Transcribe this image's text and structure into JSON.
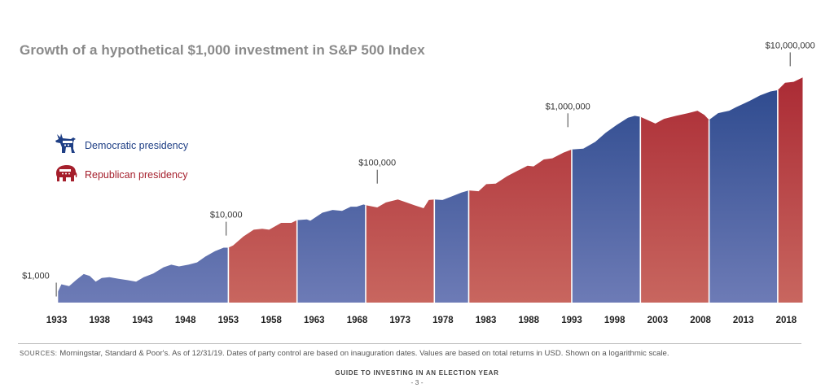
{
  "title": "Growth of a hypothetical $1,000 investment in S&P 500 Index",
  "legend": [
    {
      "label": "Democratic presidency",
      "party": "D",
      "icon": "donkey-icon"
    },
    {
      "label": "Republican presidency",
      "party": "R",
      "icon": "elephant-icon"
    }
  ],
  "colors": {
    "D_top": "#1f3f85",
    "D_bottom": "#6d7bb6",
    "R_top": "#a51f2c",
    "R_bottom": "#c8665f",
    "D_text": "#1f3f85",
    "R_text": "#a51f2c"
  },
  "chart_data": {
    "type": "area",
    "title": "Growth of a hypothetical $1,000 investment in S&P 500 Index",
    "y_scale": "log",
    "ylim": [
      640,
      20000000
    ],
    "xlim": [
      1932.9,
      2020.0
    ],
    "x_ticks": [
      "1933",
      "1938",
      "1943",
      "1948",
      "1953",
      "1958",
      "1963",
      "1968",
      "1973",
      "1978",
      "1983",
      "1988",
      "1993",
      "1998",
      "2003",
      "2008",
      "2013",
      "2018"
    ],
    "annotations": [
      {
        "label": "$1,000",
        "x": 1933.0,
        "y": 1000
      },
      {
        "label": "$10,000",
        "x": 1952.8,
        "y": 12000
      },
      {
        "label": "$100,000",
        "x": 1970.4,
        "y": 100000
      },
      {
        "label": "$1,000,000",
        "x": 1992.6,
        "y": 1000000
      },
      {
        "label": "$10,000,000",
        "x": 2018.5,
        "y": 12000000
      }
    ],
    "party_periods": [
      {
        "start": 1933.2,
        "end": 1953.05,
        "party": "D"
      },
      {
        "start": 1953.05,
        "end": 1961.05,
        "party": "R"
      },
      {
        "start": 1961.05,
        "end": 1969.05,
        "party": "D"
      },
      {
        "start": 1969.05,
        "end": 1977.05,
        "party": "R"
      },
      {
        "start": 1977.05,
        "end": 1981.05,
        "party": "D"
      },
      {
        "start": 1981.05,
        "end": 1993.05,
        "party": "R"
      },
      {
        "start": 1993.05,
        "end": 2001.05,
        "party": "D"
      },
      {
        "start": 2001.05,
        "end": 2009.05,
        "party": "R"
      },
      {
        "start": 2009.05,
        "end": 2017.05,
        "party": "D"
      },
      {
        "start": 2017.05,
        "end": 2019.95,
        "party": "R"
      }
    ],
    "series": [
      {
        "x": 1933.2,
        "y": 1000
      },
      {
        "x": 1933.6,
        "y": 1350
      },
      {
        "x": 1934.5,
        "y": 1250
      },
      {
        "x": 1935.3,
        "y": 1600
      },
      {
        "x": 1936.2,
        "y": 2050
      },
      {
        "x": 1936.9,
        "y": 1900
      },
      {
        "x": 1937.6,
        "y": 1500
      },
      {
        "x": 1938.3,
        "y": 1750
      },
      {
        "x": 1939.2,
        "y": 1800
      },
      {
        "x": 1940.2,
        "y": 1700
      },
      {
        "x": 1941.3,
        "y": 1600
      },
      {
        "x": 1942.3,
        "y": 1500
      },
      {
        "x": 1943.2,
        "y": 1800
      },
      {
        "x": 1944.3,
        "y": 2100
      },
      {
        "x": 1945.5,
        "y": 2700
      },
      {
        "x": 1946.4,
        "y": 3000
      },
      {
        "x": 1947.3,
        "y": 2800
      },
      {
        "x": 1948.4,
        "y": 3000
      },
      {
        "x": 1949.4,
        "y": 3300
      },
      {
        "x": 1950.4,
        "y": 4200
      },
      {
        "x": 1951.5,
        "y": 5200
      },
      {
        "x": 1952.5,
        "y": 6000
      },
      {
        "x": 1953.05,
        "y": 6000
      },
      {
        "x": 1953.6,
        "y": 6600
      },
      {
        "x": 1954.8,
        "y": 9500
      },
      {
        "x": 1956.0,
        "y": 12500
      },
      {
        "x": 1957.0,
        "y": 13000
      },
      {
        "x": 1957.8,
        "y": 12500
      },
      {
        "x": 1959.2,
        "y": 16500
      },
      {
        "x": 1960.4,
        "y": 16500
      },
      {
        "x": 1961.05,
        "y": 18500
      },
      {
        "x": 1962.2,
        "y": 19000
      },
      {
        "x": 1962.6,
        "y": 18000
      },
      {
        "x": 1964.0,
        "y": 25000
      },
      {
        "x": 1965.2,
        "y": 28000
      },
      {
        "x": 1966.3,
        "y": 27000
      },
      {
        "x": 1967.3,
        "y": 32000
      },
      {
        "x": 1968.0,
        "y": 32000
      },
      {
        "x": 1968.8,
        "y": 35000
      },
      {
        "x": 1969.05,
        "y": 34000
      },
      {
        "x": 1970.4,
        "y": 31000
      },
      {
        "x": 1971.4,
        "y": 38000
      },
      {
        "x": 1972.8,
        "y": 43000
      },
      {
        "x": 1973.8,
        "y": 38000
      },
      {
        "x": 1974.7,
        "y": 34000
      },
      {
        "x": 1975.8,
        "y": 30000
      },
      {
        "x": 1976.4,
        "y": 42000
      },
      {
        "x": 1977.05,
        "y": 43000
      },
      {
        "x": 1978.0,
        "y": 42000
      },
      {
        "x": 1979.0,
        "y": 48000
      },
      {
        "x": 1980.2,
        "y": 57000
      },
      {
        "x": 1981.05,
        "y": 62000
      },
      {
        "x": 1982.2,
        "y": 60000
      },
      {
        "x": 1983.1,
        "y": 80000
      },
      {
        "x": 1984.2,
        "y": 82000
      },
      {
        "x": 1985.5,
        "y": 110000
      },
      {
        "x": 1986.8,
        "y": 140000
      },
      {
        "x": 1987.9,
        "y": 170000
      },
      {
        "x": 1988.6,
        "y": 165000
      },
      {
        "x": 1989.8,
        "y": 220000
      },
      {
        "x": 1990.8,
        "y": 230000
      },
      {
        "x": 1992.1,
        "y": 290000
      },
      {
        "x": 1993.05,
        "y": 330000
      },
      {
        "x": 1994.4,
        "y": 340000
      },
      {
        "x": 1995.8,
        "y": 450000
      },
      {
        "x": 1997.0,
        "y": 650000
      },
      {
        "x": 1998.3,
        "y": 900000
      },
      {
        "x": 1999.6,
        "y": 1200000
      },
      {
        "x": 2000.4,
        "y": 1300000
      },
      {
        "x": 2001.05,
        "y": 1250000
      },
      {
        "x": 2002.8,
        "y": 950000
      },
      {
        "x": 2003.8,
        "y": 1150000
      },
      {
        "x": 2005.2,
        "y": 1300000
      },
      {
        "x": 2006.6,
        "y": 1450000
      },
      {
        "x": 2007.7,
        "y": 1600000
      },
      {
        "x": 2008.5,
        "y": 1350000
      },
      {
        "x": 2009.05,
        "y": 1100000
      },
      {
        "x": 2010.1,
        "y": 1450000
      },
      {
        "x": 2011.4,
        "y": 1600000
      },
      {
        "x": 2012.2,
        "y": 1850000
      },
      {
        "x": 2013.8,
        "y": 2400000
      },
      {
        "x": 2015.0,
        "y": 3000000
      },
      {
        "x": 2016.2,
        "y": 3500000
      },
      {
        "x": 2017.05,
        "y": 3700000
      },
      {
        "x": 2017.9,
        "y": 5000000
      },
      {
        "x": 2018.9,
        "y": 5200000
      },
      {
        "x": 2019.95,
        "y": 6200000
      }
    ]
  },
  "sources_lead": "SOURCES:",
  "sources_text": "Morningstar, Standard & Poor's. As of 12/31/19. Dates of party control are based on inauguration dates. Values are based on total returns in USD. Shown on a logarithmic scale.",
  "guide_label": "GUIDE TO INVESTING IN AN ELECTION YEAR",
  "page_number": "- 3 -"
}
